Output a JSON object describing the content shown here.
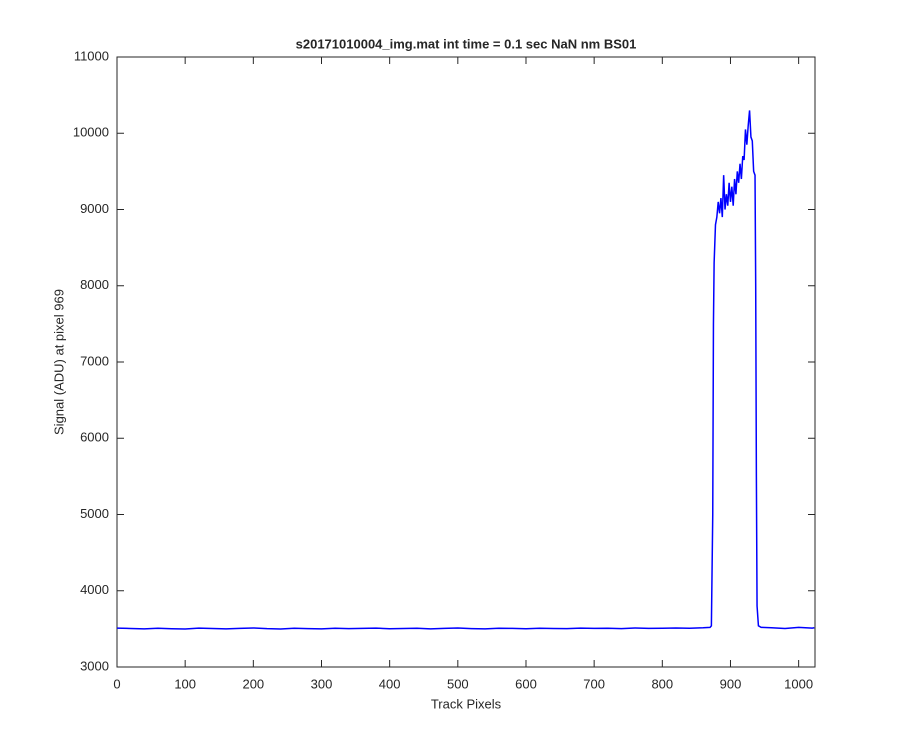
{
  "chart_data": {
    "type": "line",
    "title": "s20171010004_img.mat int time = 0.1 sec  NaN nm BS01",
    "xlabel": "Track Pixels",
    "ylabel": "Signal (ADU) at pixel 969",
    "xlim": [
      0,
      1024
    ],
    "ylim": [
      3000,
      11000
    ],
    "xticks": [
      0,
      100,
      200,
      300,
      400,
      500,
      600,
      700,
      800,
      900,
      1000
    ],
    "yticks": [
      3000,
      4000,
      5000,
      6000,
      7000,
      8000,
      9000,
      10000,
      11000
    ],
    "grid": false,
    "series": [
      {
        "color": "#0000ff",
        "x": [
          0,
          20,
          40,
          60,
          80,
          100,
          120,
          140,
          160,
          180,
          200,
          220,
          240,
          260,
          280,
          300,
          320,
          340,
          360,
          380,
          400,
          420,
          440,
          460,
          480,
          500,
          520,
          540,
          560,
          580,
          600,
          620,
          640,
          660,
          680,
          700,
          720,
          740,
          760,
          780,
          800,
          820,
          840,
          860,
          870,
          872,
          874,
          875,
          876,
          878,
          880,
          882,
          884,
          886,
          888,
          890,
          892,
          894,
          896,
          898,
          900,
          902,
          904,
          906,
          908,
          910,
          912,
          914,
          916,
          918,
          920,
          922,
          924,
          926,
          928,
          930,
          932,
          934,
          936,
          937,
          938,
          939,
          941,
          945,
          960,
          980,
          1000,
          1020,
          1023
        ],
        "values": [
          3510,
          3505,
          3500,
          3508,
          3502,
          3498,
          3510,
          3505,
          3500,
          3507,
          3512,
          3503,
          3499,
          3508,
          3504,
          3500,
          3509,
          3503,
          3506,
          3510,
          3502,
          3505,
          3508,
          3500,
          3507,
          3511,
          3504,
          3500,
          3509,
          3506,
          3502,
          3508,
          3505,
          3503,
          3510,
          3506,
          3508,
          3503,
          3511,
          3507,
          3509,
          3512,
          3508,
          3514,
          3520,
          3540,
          5000,
          7500,
          8300,
          8800,
          8900,
          9100,
          8950,
          9150,
          8900,
          9450,
          9000,
          9200,
          9050,
          9350,
          9100,
          9300,
          9050,
          9400,
          9200,
          9500,
          9350,
          9600,
          9400,
          9700,
          9650,
          10050,
          9850,
          10100,
          10300,
          9950,
          9900,
          9500,
          9450,
          8000,
          5500,
          3800,
          3540,
          3520,
          3515,
          3505,
          3520,
          3510,
          3515
        ]
      }
    ]
  }
}
